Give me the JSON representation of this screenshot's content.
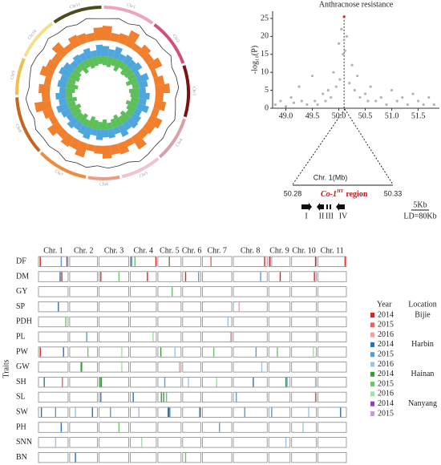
{
  "chart_data": [
    {
      "type": "circos",
      "chromosomes": [
        {
          "name": "Chr1",
          "length": 52.2,
          "color": "#eaa6bd"
        },
        {
          "name": "Chr2",
          "length": 49.0,
          "color": "#d24f78"
        },
        {
          "name": "Chr3",
          "length": 52.3,
          "color": "#7b1212"
        },
        {
          "name": "Chr4",
          "length": 45.8,
          "color": "#d8a0a8"
        },
        {
          "name": "Chr5",
          "length": 40.9,
          "color": "#f0c4cf"
        },
        {
          "name": "Chr6",
          "length": 31.9,
          "color": "#f19a84"
        },
        {
          "name": "Chr7",
          "length": 51.8,
          "color": "#f08a3c"
        },
        {
          "name": "Chr8",
          "length": 59.7,
          "color": "#c4661e"
        },
        {
          "name": "Chr9",
          "length": 37.5,
          "color": "#f0c04a"
        },
        {
          "name": "Chr10",
          "length": 43.3,
          "color": "#f3e08a"
        },
        {
          "name": "Chr11",
          "length": 50.4,
          "color": "#4b4b1c"
        }
      ],
      "tracks": [
        {
          "style": "line",
          "color": "#333333",
          "values": [
            0.5,
            0.7,
            0.4,
            0.8,
            0.3,
            0.6,
            0.5,
            0.9,
            0.4,
            0.6,
            0.7,
            0.3,
            0.5,
            0.8,
            0.4,
            0.6,
            0.5,
            0.7,
            0.9,
            0.4,
            0.5,
            0.6,
            0.3,
            0.7,
            0.5,
            0.8,
            0.4,
            0.6,
            0.5,
            0.7,
            0.3,
            0.6,
            0.8,
            0.4,
            0.5,
            0.7,
            0.6,
            0.4,
            0.8,
            0.5,
            0.6,
            0.3,
            0.7,
            0.5
          ]
        },
        {
          "style": "bar",
          "color": "#f07f2e",
          "values": [
            0.9,
            0.5,
            0.6,
            1.0,
            0.4,
            0.7,
            0.5,
            0.8,
            0.3,
            0.6,
            0.9,
            0.5,
            0.7,
            0.4,
            0.8,
            0.6,
            0.5,
            0.9,
            0.4,
            0.7,
            0.6,
            0.8,
            0.5,
            0.4,
            0.9,
            0.6,
            0.7,
            0.5,
            0.8,
            0.4,
            0.6,
            1.0,
            0.5,
            0.7,
            0.4,
            0.8,
            0.6,
            0.5,
            0.9,
            0.4,
            0.7,
            0.6,
            0.5,
            0.8
          ]
        },
        {
          "style": "bar",
          "color": "#4fa6dc",
          "values": [
            0.8,
            0.6,
            0.9,
            0.5,
            0.7,
            0.6,
            0.8,
            0.4,
            0.9,
            0.7,
            0.5,
            0.8,
            0.6,
            0.9,
            0.5,
            0.7,
            0.8,
            0.6,
            0.9,
            0.5,
            0.7,
            0.6,
            0.8,
            0.5,
            0.9,
            0.7,
            0.6,
            0.8,
            0.5,
            0.7,
            0.9,
            0.6,
            0.8,
            0.5,
            0.7,
            0.6,
            0.9,
            0.8,
            0.5,
            0.7,
            0.6,
            0.8,
            0.5,
            0.9
          ]
        },
        {
          "style": "bar-inward",
          "color": "#5cbf5a",
          "values": [
            0.7,
            0.8,
            0.6,
            0.9,
            0.5,
            0.8,
            0.7,
            0.6,
            0.9,
            0.5,
            0.8,
            0.7,
            0.6,
            0.9,
            0.7,
            0.5,
            0.8,
            0.6,
            0.9,
            0.7,
            0.5,
            0.8,
            0.6,
            0.7,
            0.9,
            0.5,
            0.8,
            0.6,
            0.7,
            0.9,
            0.6,
            0.8,
            0.5,
            0.7,
            0.9,
            0.6,
            0.8,
            0.7,
            0.5,
            0.9,
            0.6,
            0.8,
            0.7,
            0.6
          ]
        }
      ]
    },
    {
      "type": "scatter",
      "title": "Anthracnose resistance",
      "ylabel": "-log₁₀(P)",
      "xlim": [
        48.75,
        51.9
      ],
      "ylim": [
        0,
        27
      ],
      "xticks": [
        {
          "value": 49,
          "label": "49.0"
        },
        49.5,
        {
          "value": 50,
          "label": "50.0"
        },
        50.5,
        {
          "value": 51,
          "label": "51.0"
        },
        51.5
      ],
      "yticks": [
        0,
        5,
        10,
        15,
        20,
        25
      ],
      "series": [
        {
          "color": "#b4b4b4",
          "x": [
            48.8,
            48.9,
            49.0,
            49.1,
            49.15,
            49.25,
            49.3,
            49.4,
            49.5,
            49.55,
            49.6,
            49.7,
            49.75,
            49.8,
            49.85,
            49.9,
            49.95,
            50.0,
            50.02,
            50.05,
            50.08,
            50.1,
            50.12,
            50.15,
            50.2,
            50.25,
            50.3,
            50.35,
            50.4,
            50.5,
            50.55,
            50.6,
            50.7,
            50.8,
            50.9,
            51.0,
            51.1,
            51.2,
            51.3,
            51.4,
            51.5,
            51.6,
            51.7,
            51.8
          ],
          "values": [
            1,
            2,
            0.5,
            3,
            1.5,
            6,
            2,
            1,
            9,
            2,
            1,
            4,
            2,
            5,
            3,
            10,
            6,
            18,
            8,
            22,
            15,
            19,
            16,
            20,
            7,
            12,
            5,
            9,
            3,
            4,
            2,
            6,
            2,
            3,
            1,
            5,
            2,
            3,
            1,
            4,
            2,
            1,
            3,
            1
          ]
        },
        {
          "color": "#e0282e",
          "x": [
            50.1
          ],
          "values": [
            25.5
          ]
        }
      ]
    },
    {
      "type": "strip",
      "ylabel": "Traits",
      "chromosomes": [
        {
          "name": "Chr. 1",
          "length": 52.2
        },
        {
          "name": "Chr. 2",
          "length": 49.0
        },
        {
          "name": "Chr. 3",
          "length": 52.3
        },
        {
          "name": "Chr. 4",
          "length": 45.8
        },
        {
          "name": "Chr. 5",
          "length": 40.9
        },
        {
          "name": "Chr. 6",
          "length": 31.9
        },
        {
          "name": "Chr. 7",
          "length": 51.8
        },
        {
          "name": "Chr. 8",
          "length": 59.7
        },
        {
          "name": "Chr. 9",
          "length": 37.5
        },
        {
          "name": "Chr. 10",
          "length": 43.3
        },
        {
          "name": "Chr. 11",
          "length": 50.4
        }
      ],
      "legend_year_title": "Year",
      "legend_location_title": "Location",
      "locations": [
        {
          "name": "Bijie",
          "years": [
            {
              "name": "2014",
              "color": "#d62728"
            },
            {
              "name": "2015",
              "color": "#e46464"
            },
            {
              "name": "2016",
              "color": "#f0a0a0"
            }
          ]
        },
        {
          "name": "Harbin",
          "years": [
            {
              "name": "2014",
              "color": "#2f6fb0"
            },
            {
              "name": "2015",
              "color": "#5b9bd5"
            },
            {
              "name": "2016",
              "color": "#9cc3e6"
            }
          ]
        },
        {
          "name": "Hainan",
          "years": [
            {
              "name": "2014",
              "color": "#3a9a3a"
            },
            {
              "name": "2015",
              "color": "#6cc46c"
            },
            {
              "name": "2016",
              "color": "#a8dca8"
            }
          ]
        },
        {
          "name": "Nanyang",
          "years": [
            {
              "name": "2014",
              "color": "#8e44ad"
            },
            {
              "name": "2015",
              "color": "#c89bd8"
            }
          ]
        }
      ],
      "traits": [
        {
          "name": "DF",
          "hits": [
            [
              0,
              3,
              0,
              0
            ],
            [
              0,
              40,
              1,
              1
            ],
            [
              0,
              50,
              3,
              0
            ],
            [
              3,
              2,
              1,
              0
            ],
            [
              3,
              8,
              2,
              1
            ],
            [
              3,
              45,
              0,
              0
            ],
            [
              4,
              20,
              2,
              0
            ],
            [
              6,
              15,
              0,
              1
            ],
            [
              7,
              55,
              0,
              0
            ],
            [
              8,
              2,
              0,
              0
            ],
            [
              8,
              5,
              1,
              2
            ],
            [
              9,
              42,
              0,
              0
            ],
            [
              10,
              48,
              0,
              0
            ]
          ]
        },
        {
          "name": "DM",
          "hits": [
            [
              0,
              38,
              1,
              0
            ],
            [
              0,
              41,
              0,
              0
            ],
            [
              2,
              3,
              0,
              0
            ],
            [
              2,
              35,
              2,
              1
            ],
            [
              3,
              30,
              0,
              0
            ],
            [
              5,
              5,
              0,
              0
            ],
            [
              5,
              28,
              1,
              1
            ],
            [
              7,
              48,
              1,
              1
            ],
            [
              8,
              20,
              0,
              0
            ],
            [
              9,
              40,
              0,
              0
            ]
          ]
        },
        {
          "name": "GY",
          "hits": [
            [
              4,
              25,
              2,
              1
            ]
          ]
        },
        {
          "name": "SP",
          "hits": [
            [
              0,
              35,
              1,
              0
            ],
            [
              7,
              10,
              0,
              2
            ]
          ]
        },
        {
          "name": "PDH",
          "hits": [
            [
              0,
              48,
              2,
              1
            ],
            [
              6,
              45,
              1,
              2
            ]
          ]
        },
        {
          "name": "PL",
          "hits": [
            [
              1,
              30,
              1,
              1
            ],
            [
              3,
              40,
              2,
              2
            ],
            [
              6,
              50,
              0,
              2
            ]
          ]
        },
        {
          "name": "PW",
          "hits": [
            [
              0,
              3,
              0,
              0
            ],
            [
              0,
              44,
              1,
              0
            ],
            [
              1,
              32,
              2,
              1
            ],
            [
              2,
              40,
              2,
              2
            ],
            [
              4,
              5,
              2,
              0
            ],
            [
              4,
              30,
              1,
              2
            ],
            [
              6,
              20,
              2,
              1
            ],
            [
              7,
              40,
              1,
              1
            ],
            [
              8,
              15,
              2,
              1
            ],
            [
              9,
              38,
              2,
              2
            ]
          ]
        },
        {
          "name": "GW",
          "hits": [
            [
              1,
              20,
              2,
              0
            ],
            [
              1,
              21,
              2,
              0
            ],
            [
              2,
              40,
              2,
              2
            ],
            [
              4,
              38,
              0,
              2
            ],
            [
              7,
              50,
              1,
              2
            ]
          ]
        },
        {
          "name": "SH",
          "hits": [
            [
              0,
              10,
              1,
              0
            ],
            [
              0,
              42,
              0,
              1
            ],
            [
              2,
              2,
              2,
              0
            ],
            [
              2,
              4,
              2,
              0
            ],
            [
              4,
              12,
              1,
              1
            ],
            [
              5,
              10,
              1,
              2
            ],
            [
              6,
              25,
              2,
              2
            ],
            [
              7,
              35,
              1,
              0
            ],
            [
              8,
              30,
              2,
              0
            ],
            [
              8,
              32,
              1,
              1
            ],
            [
              9,
              42,
              1,
              2
            ]
          ]
        },
        {
          "name": "SL",
          "hits": [
            [
              2,
              3,
              1,
              0
            ],
            [
              3,
              5,
              1,
              0
            ],
            [
              4,
              6,
              2,
              0
            ],
            [
              4,
              10,
              2,
              0
            ],
            [
              4,
              15,
              2,
              1
            ],
            [
              7,
              5,
              1,
              1
            ],
            [
              9,
              42,
              0,
              1
            ]
          ]
        },
        {
          "name": "SW",
          "hits": [
            [
              0,
              5,
              1,
              0
            ],
            [
              0,
              30,
              1,
              1
            ],
            [
              1,
              10,
              1,
              2
            ],
            [
              1,
              40,
              1,
              0
            ],
            [
              2,
              20,
              1,
              1
            ],
            [
              3,
              15,
              1,
              2
            ],
            [
              4,
              18,
              1,
              0
            ],
            [
              4,
              19,
              1,
              0
            ],
            [
              4,
              20,
              1,
              0
            ],
            [
              4,
              21,
              1,
              1
            ],
            [
              5,
              30,
              1,
              0
            ],
            [
              7,
              20,
              1,
              1
            ],
            [
              8,
              5,
              1,
              1
            ],
            [
              9,
              30,
              1,
              2
            ],
            [
              10,
              40,
              1,
              0
            ]
          ]
        },
        {
          "name": "PH",
          "hits": [
            [
              0,
              40,
              1,
              0
            ],
            [
              2,
              35,
              2,
              1
            ],
            [
              6,
              30,
              1,
              1
            ],
            [
              9,
              20,
              1,
              2
            ]
          ]
        },
        {
          "name": "SNN",
          "hits": [
            [
              0,
              30,
              1,
              2
            ],
            [
              3,
              20,
              2,
              2
            ],
            [
              8,
              30,
              1,
              2
            ]
          ]
        },
        {
          "name": "BN",
          "hits": [
            [
              1,
              10,
              1,
              0
            ],
            [
              5,
              5,
              2,
              1
            ]
          ]
        }
      ]
    }
  ],
  "region": {
    "axis_label": "Chr. 1(Mb)",
    "start": "50.28",
    "end": "50.33",
    "gene": "Co-1",
    "gene_sup": "HY",
    "suffix": "region",
    "genes": [
      "I",
      "II",
      "III",
      "IV"
    ],
    "scale": "5Kb",
    "ld": "LD=80Kb"
  }
}
